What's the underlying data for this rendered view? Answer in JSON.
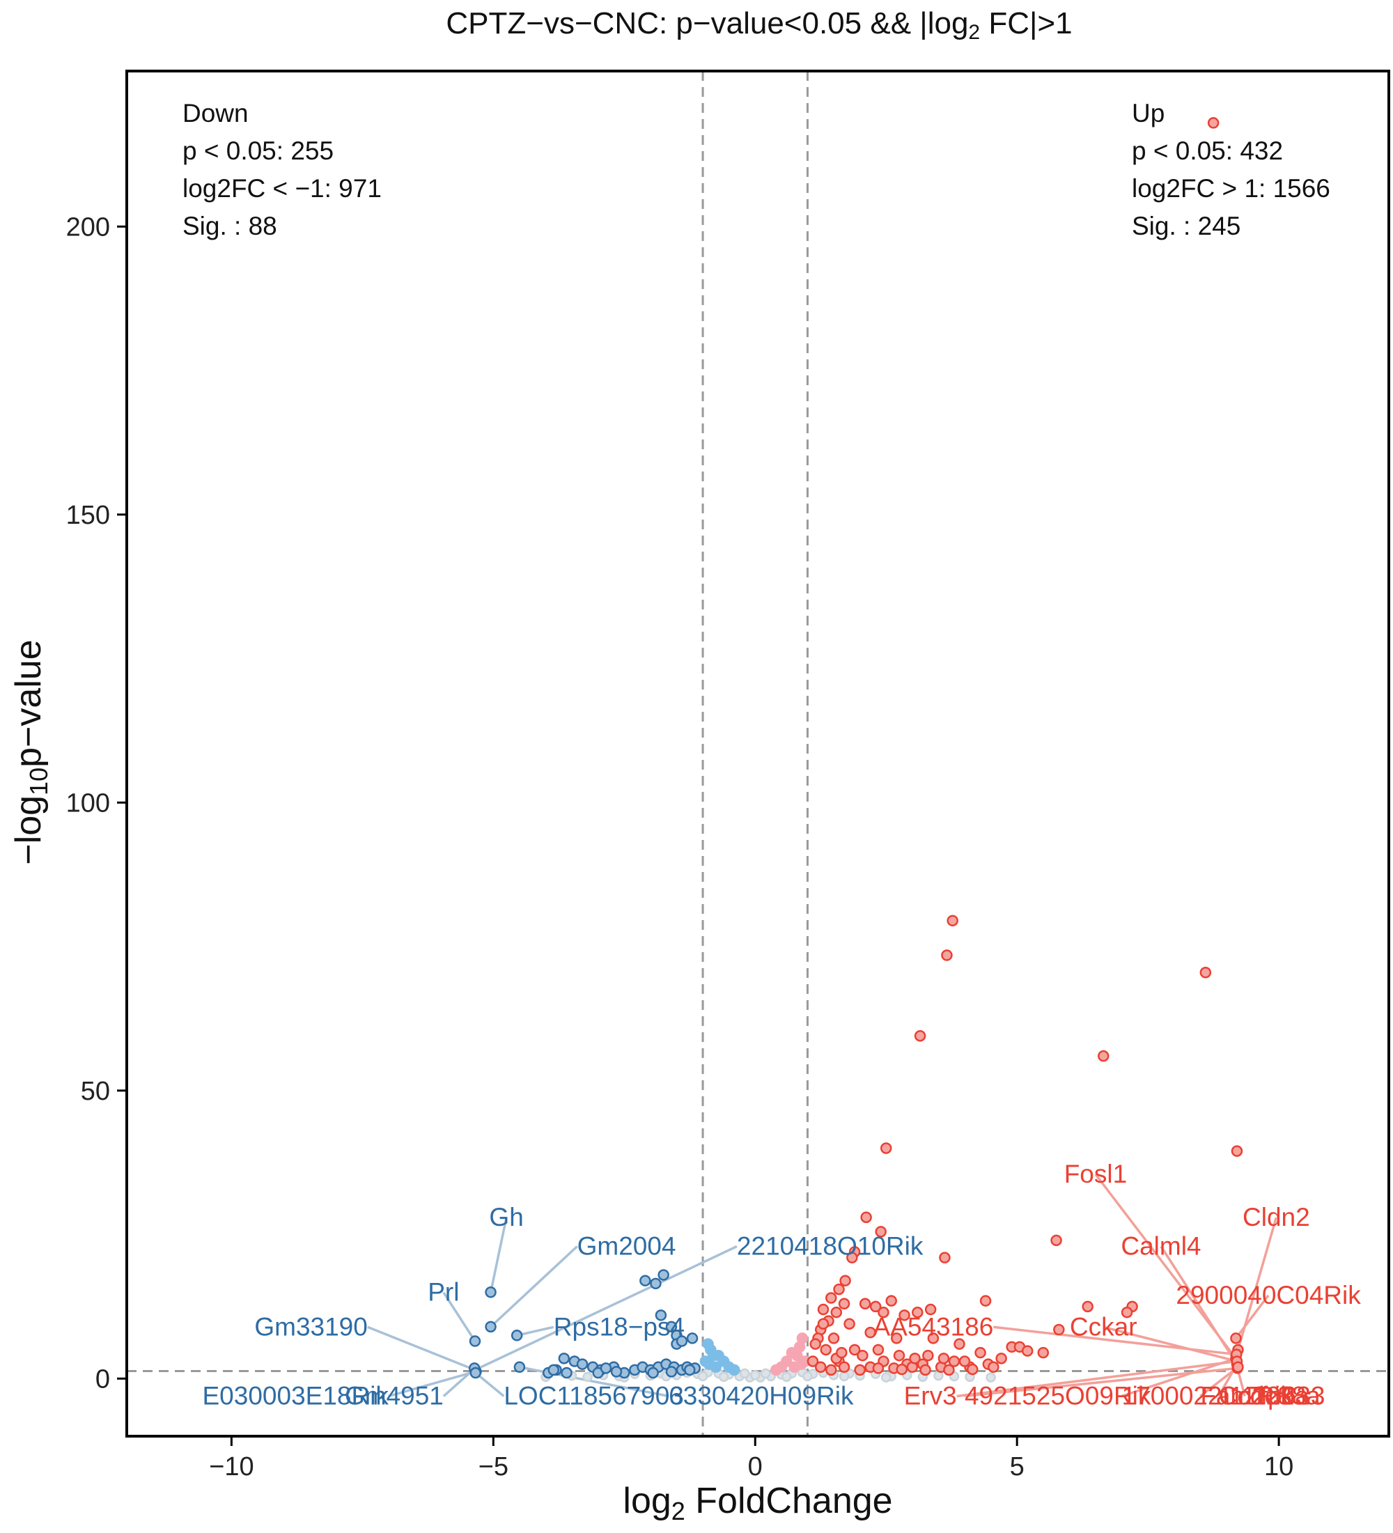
{
  "chart_data": {
    "type": "scatter",
    "title": {
      "prefix": "CPTZ−vs−CNC: p−value<0.05 && |log",
      "sub": "2",
      "suffix": " FC|>1"
    },
    "xlabel": {
      "prefix": "log",
      "sub": "2",
      "suffix": " FoldChange"
    },
    "ylabel": {
      "prefix": "−log",
      "sub": "10",
      "suffix": "p−value"
    },
    "xlim": [
      -12,
      12.1
    ],
    "ylim": [
      -10,
      227
    ],
    "xticks": [
      {
        "value": -10,
        "label": "−10"
      },
      {
        "value": -5,
        "label": "−5"
      },
      {
        "value": 0,
        "label": "0"
      },
      {
        "value": 5,
        "label": "5"
      },
      {
        "value": 10,
        "label": "10"
      }
    ],
    "yticks": [
      {
        "value": 0,
        "label": "0"
      },
      {
        "value": 50,
        "label": "50"
      },
      {
        "value": 100,
        "label": "100"
      },
      {
        "value": 150,
        "label": "150"
      },
      {
        "value": 200,
        "label": "200"
      }
    ],
    "thresholds": {
      "log2fc": [
        -1,
        1
      ],
      "neg_log10_p": 1.3
    },
    "colors": {
      "down_sig": "#2e6ca4",
      "down_light": "#7cbde8",
      "up_sig": "#ea4033",
      "up_light": "#f6a6b2",
      "nonsig": "#c9d3da",
      "up_label_line": "#f3a09a",
      "down_label_line": "#a8c1d8"
    },
    "annotations": {
      "down": [
        "Down",
        "p < 0.05: 255",
        "log2FC < −1: 971",
        "Sig. : 88"
      ],
      "up": [
        "Up",
        "p < 0.05: 432",
        "log2FC > 1: 1566",
        "Sig. : 245"
      ]
    },
    "series": [
      {
        "name": "Up",
        "points": [
          [
            8.75,
            218
          ],
          [
            3.77,
            79.5
          ],
          [
            3.66,
            73.5
          ],
          [
            8.6,
            70.5
          ],
          [
            3.15,
            59.5
          ],
          [
            6.65,
            56
          ],
          [
            9.2,
            39.5
          ],
          [
            2.5,
            40
          ],
          [
            2.12,
            28
          ],
          [
            2.4,
            25.5
          ],
          [
            1.9,
            22
          ],
          [
            1.85,
            21
          ],
          [
            3.62,
            21
          ],
          [
            5.75,
            24
          ],
          [
            1.72,
            17
          ],
          [
            1.6,
            15.5
          ],
          [
            1.45,
            14
          ],
          [
            1.3,
            12
          ],
          [
            1.7,
            13
          ],
          [
            1.55,
            11.5
          ],
          [
            1.4,
            10
          ],
          [
            2.1,
            13
          ],
          [
            2.3,
            12.5
          ],
          [
            2.6,
            13.5
          ],
          [
            2.45,
            11.5
          ],
          [
            2.85,
            11
          ],
          [
            3.1,
            11.5
          ],
          [
            3.35,
            12
          ],
          [
            4.4,
            13.5
          ],
          [
            6.35,
            12.5
          ],
          [
            7.2,
            12.5
          ],
          [
            7.1,
            11.5
          ],
          [
            1.25,
            8.5
          ],
          [
            1.2,
            7
          ],
          [
            1.3,
            9.5
          ],
          [
            1.15,
            6
          ],
          [
            1.5,
            7
          ],
          [
            1.8,
            9.5
          ],
          [
            2.2,
            8
          ],
          [
            2.7,
            7
          ],
          [
            3.4,
            7
          ],
          [
            3.9,
            6
          ],
          [
            4.9,
            5.5
          ],
          [
            5.05,
            5.5
          ],
          [
            5.8,
            8.5
          ],
          [
            5.5,
            4.5
          ],
          [
            4.3,
            4.5
          ],
          [
            4.7,
            3.5
          ],
          [
            3.3,
            4
          ],
          [
            3.8,
            3
          ],
          [
            4.1,
            2
          ],
          [
            1.9,
            5
          ],
          [
            2.05,
            4
          ],
          [
            1.35,
            5
          ],
          [
            1.6,
            3
          ],
          [
            2.45,
            3
          ],
          [
            2.9,
            2.5
          ],
          [
            3.2,
            2.5
          ],
          [
            3.55,
            2
          ],
          [
            1.1,
            3
          ],
          [
            1.25,
            2
          ],
          [
            1.7,
            2
          ],
          [
            2.2,
            2
          ],
          [
            2.65,
            1.8
          ],
          [
            3.0,
            2
          ],
          [
            4.45,
            2.5
          ],
          [
            1.45,
            1.5
          ],
          [
            2.0,
            1.5
          ],
          [
            2.35,
            1.8
          ],
          [
            2.8,
            1.6
          ],
          [
            3.25,
            1.5
          ],
          [
            3.7,
            1.5
          ],
          [
            4.15,
            1.6
          ],
          [
            1.55,
            3.5
          ],
          [
            1.65,
            4.5
          ],
          [
            2.35,
            5
          ],
          [
            2.75,
            4
          ],
          [
            3.05,
            3.5
          ],
          [
            3.6,
            3.5
          ],
          [
            4.0,
            3
          ],
          [
            4.55,
            2
          ],
          [
            5.2,
            4.8
          ],
          [
            9.18,
            7
          ],
          [
            9.22,
            5
          ],
          [
            9.18,
            3.5
          ],
          [
            9.2,
            2.5
          ],
          [
            9.21,
            1.8
          ],
          [
            9.19,
            4.2
          ],
          [
            9.2,
            3
          ],
          [
            9.22,
            2
          ]
        ]
      },
      {
        "name": "Down",
        "points": [
          [
            -5.05,
            15
          ],
          [
            -5.05,
            9
          ],
          [
            -5.35,
            6.5
          ],
          [
            -4.55,
            7.5
          ],
          [
            -2.1,
            17
          ],
          [
            -1.75,
            18
          ],
          [
            -1.9,
            16.5
          ],
          [
            -1.8,
            11
          ],
          [
            -1.6,
            9
          ],
          [
            -1.5,
            7.5
          ],
          [
            -1.5,
            6
          ],
          [
            -1.4,
            6.5
          ],
          [
            -1.2,
            7
          ],
          [
            -4.5,
            2
          ],
          [
            -3.8,
            1.5
          ],
          [
            -3.6,
            1
          ],
          [
            -3.65,
            3.5
          ],
          [
            -3.45,
            3
          ],
          [
            -3.3,
            2.5
          ],
          [
            -3.1,
            2
          ],
          [
            -2.95,
            1.5
          ],
          [
            -2.7,
            2
          ],
          [
            -2.5,
            1
          ],
          [
            -2.3,
            1.5
          ],
          [
            -2.15,
            2
          ],
          [
            -2.0,
            1.5
          ],
          [
            -1.85,
            2
          ],
          [
            -1.7,
            2.5
          ],
          [
            -1.55,
            2
          ],
          [
            -1.4,
            1.5
          ],
          [
            -1.3,
            2
          ],
          [
            -1.15,
            1.8
          ],
          [
            -3.95,
            1
          ],
          [
            -3.85,
            1.5
          ],
          [
            -3.0,
            1
          ],
          [
            -2.65,
            1.2
          ],
          [
            -2.85,
            1.8
          ],
          [
            -1.95,
            1
          ],
          [
            -1.25,
            1.5
          ],
          [
            -1.6,
            1.2
          ],
          [
            -5.35,
            1.5
          ],
          [
            -5.33,
            1.2
          ],
          [
            -5.36,
            1.8
          ],
          [
            -5.34,
            1
          ]
        ]
      },
      {
        "name": "Up-light",
        "points": [
          [
            0.9,
            7
          ],
          [
            0.85,
            5.5
          ],
          [
            0.8,
            4
          ],
          [
            0.95,
            3
          ],
          [
            0.7,
            4.5
          ],
          [
            0.6,
            3
          ],
          [
            0.75,
            2
          ],
          [
            0.5,
            2
          ],
          [
            0.88,
            2.5
          ],
          [
            0.4,
            1.5
          ]
        ]
      },
      {
        "name": "Down-light",
        "points": [
          [
            -0.9,
            6
          ],
          [
            -0.85,
            5
          ],
          [
            -0.8,
            4
          ],
          [
            -0.95,
            3
          ],
          [
            -0.7,
            4
          ],
          [
            -0.6,
            3
          ],
          [
            -0.75,
            2
          ],
          [
            -0.5,
            2
          ],
          [
            -0.88,
            2.5
          ],
          [
            -0.4,
            1.5
          ]
        ]
      },
      {
        "name": "Not significant",
        "points": [
          [
            -3.5,
            0.5
          ],
          [
            -3.2,
            0.3
          ],
          [
            -2.9,
            0.6
          ],
          [
            -2.6,
            0.4
          ],
          [
            -2.3,
            0.8
          ],
          [
            -2.0,
            0.5
          ],
          [
            -1.8,
            0.9
          ],
          [
            -1.5,
            0.6
          ],
          [
            -1.3,
            1.0
          ],
          [
            -1.1,
            0.8
          ],
          [
            -0.9,
            1.1
          ],
          [
            -0.7,
            0.9
          ],
          [
            -0.5,
            0.7
          ],
          [
            -0.3,
            0.4
          ],
          [
            -0.1,
            0.2
          ],
          [
            0.1,
            0.2
          ],
          [
            0.3,
            0.4
          ],
          [
            0.5,
            0.7
          ],
          [
            0.7,
            0.9
          ],
          [
            0.9,
            1.1
          ],
          [
            1.1,
            0.8
          ],
          [
            1.3,
            1.0
          ],
          [
            1.5,
            0.6
          ],
          [
            1.8,
            0.9
          ],
          [
            2.0,
            0.5
          ],
          [
            2.3,
            0.8
          ],
          [
            2.6,
            0.4
          ],
          [
            2.9,
            0.6
          ],
          [
            3.2,
            0.3
          ],
          [
            3.5,
            0.5
          ],
          [
            3.8,
            0.4
          ],
          [
            4.1,
            0.3
          ],
          [
            -0.2,
            0.9
          ],
          [
            0.2,
            0.9
          ],
          [
            -0.6,
            0.3
          ],
          [
            0.6,
            0.3
          ],
          [
            -1.7,
            0.4
          ],
          [
            1.7,
            0.4
          ],
          [
            -2.5,
            0.2
          ],
          [
            2.5,
            0.2
          ],
          [
            4.5,
            0.2
          ],
          [
            -4.0,
            0.3
          ],
          [
            -1.0,
            0.4
          ],
          [
            1.0,
            0.4
          ],
          [
            0.0,
            0.6
          ]
        ]
      }
    ],
    "labels": [
      {
        "gene": "Gh",
        "side": "down",
        "point": [
          -5.05,
          15
        ],
        "at": [
          -4.75,
          26.5
        ],
        "anchor": "middle"
      },
      {
        "gene": "Gm2004",
        "side": "down",
        "point": [
          -5.05,
          9
        ],
        "at": [
          -3.4,
          21.5
        ],
        "anchor": "start"
      },
      {
        "gene": "2210418O10Rik",
        "side": "down",
        "point": [
          -5.35,
          1.5
        ],
        "at": [
          -0.35,
          21.5
        ],
        "anchor": "start"
      },
      {
        "gene": "Prl",
        "side": "down",
        "point": [
          -5.35,
          6.5
        ],
        "at": [
          -5.95,
          13.5
        ],
        "anchor": "middle"
      },
      {
        "gene": "Rps18−ps4",
        "side": "down",
        "point": [
          -4.55,
          7.5
        ],
        "at": [
          -3.85,
          7.5
        ],
        "anchor": "start"
      },
      {
        "gene": "Gm33190",
        "side": "down",
        "point": [
          -5.35,
          1.5
        ],
        "at": [
          -7.4,
          7.5
        ],
        "anchor": "end"
      },
      {
        "gene": "E030003E18Rik",
        "side": "down",
        "point": [
          -5.35,
          1.2
        ],
        "at": [
          -7.0,
          -4.5
        ],
        "anchor": "end"
      },
      {
        "gene": "Gm4951",
        "side": "down",
        "point": [
          -5.35,
          1.8
        ],
        "at": [
          -5.95,
          -4.5
        ],
        "anchor": "end"
      },
      {
        "gene": "LOC118567903",
        "side": "down",
        "point": [
          -5.34,
          1
        ],
        "at": [
          -4.8,
          -4.5
        ],
        "anchor": "start"
      },
      {
        "gene": "6330420H09Rik",
        "side": "down",
        "point": [
          -4.5,
          2
        ],
        "at": [
          -1.65,
          -4.5
        ],
        "anchor": "start"
      },
      {
        "gene": "Fosl1",
        "side": "up",
        "point": [
          9.18,
          3.5
        ],
        "at": [
          6.5,
          34
        ],
        "anchor": "middle"
      },
      {
        "gene": "Cldn2",
        "side": "up",
        "point": [
          9.22,
          5
        ],
        "at": [
          9.95,
          26.5
        ],
        "anchor": "middle"
      },
      {
        "gene": "Calml4",
        "side": "up",
        "point": [
          9.2,
          2.5
        ],
        "at": [
          7.75,
          21.5
        ],
        "anchor": "middle"
      },
      {
        "gene": "2900040C04Rik",
        "side": "up",
        "point": [
          9.18,
          7
        ],
        "at": [
          9.8,
          13
        ],
        "anchor": "middle"
      },
      {
        "gene": "AA543186",
        "side": "up",
        "point": [
          9.19,
          4.2
        ],
        "at": [
          4.55,
          7.5
        ],
        "anchor": "end"
      },
      {
        "gene": "Cckar",
        "side": "up",
        "point": [
          9.2,
          3
        ],
        "at": [
          6.65,
          7.5
        ],
        "anchor": "middle"
      },
      {
        "gene": "Erv3",
        "side": "up",
        "point": [
          9.2,
          3
        ],
        "at": [
          3.85,
          -4.5
        ],
        "anchor": "end"
      },
      {
        "gene": "4921525O09Rik",
        "side": "up",
        "point": [
          9.21,
          1.8
        ],
        "at": [
          4.0,
          -4.5
        ],
        "anchor": "start"
      },
      {
        "gene": "1700022I11Rik",
        "side": "up",
        "point": [
          9.18,
          3.5
        ],
        "at": [
          7.0,
          -4.5
        ],
        "anchor": "start"
      },
      {
        "gene": "Fam229a",
        "side": "up",
        "point": [
          9.22,
          2
        ],
        "at": [
          8.5,
          -4.5
        ],
        "anchor": "start"
      },
      {
        "gene": "Ccdc88a",
        "side": "up",
        "point": [
          9.2,
          2.5
        ],
        "at": [
          8.85,
          -4.5
        ],
        "anchor": "start"
      },
      {
        "gene": "Zfp633",
        "side": "up",
        "point": [
          9.21,
          1.8
        ],
        "at": [
          9.35,
          -4.5
        ],
        "anchor": "start"
      }
    ]
  }
}
